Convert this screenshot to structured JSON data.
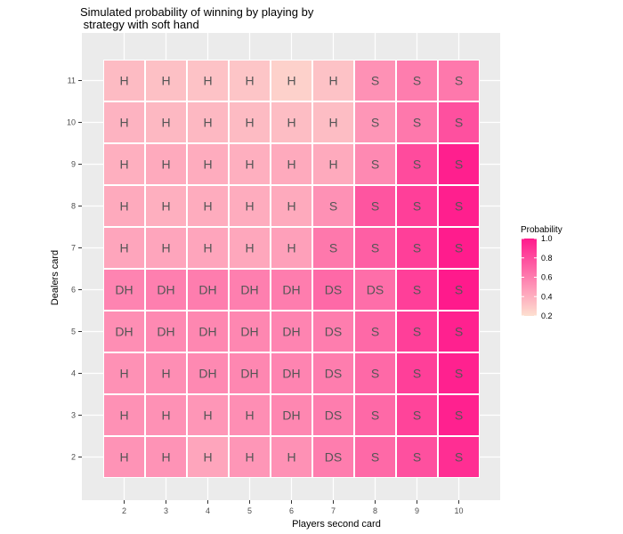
{
  "chart_data": {
    "type": "heatmap",
    "title": "Simulated probability of winning by playing by\n strategy with soft hand",
    "xlabel": "Players second card",
    "ylabel": "Dealers card",
    "x": [
      "2",
      "3",
      "4",
      "5",
      "6",
      "7",
      "8",
      "9",
      "10"
    ],
    "y": [
      "2",
      "3",
      "4",
      "5",
      "6",
      "7",
      "8",
      "9",
      "10",
      "11"
    ],
    "legend": {
      "title": "Probability",
      "ticks": [
        "0.2",
        "0.4",
        "0.6",
        "0.8",
        "1.0"
      ],
      "range": [
        0.2,
        1.0
      ],
      "low_color": "#fde0d0",
      "high_color": "#ff1a8c",
      "placement": "right"
    },
    "grid": true,
    "cells": [
      {
        "y": "11",
        "labels": [
          "H",
          "H",
          "H",
          "H",
          "H",
          "H",
          "S",
          "S",
          "S"
        ],
        "values": [
          0.35,
          0.33,
          0.32,
          0.31,
          0.26,
          0.32,
          0.52,
          0.6,
          0.62
        ]
      },
      {
        "y": "10",
        "labels": [
          "H",
          "H",
          "H",
          "H",
          "H",
          "H",
          "S",
          "S",
          "S"
        ],
        "values": [
          0.38,
          0.36,
          0.36,
          0.35,
          0.34,
          0.34,
          0.5,
          0.62,
          0.78
        ]
      },
      {
        "y": "9",
        "labels": [
          "H",
          "H",
          "H",
          "H",
          "H",
          "H",
          "S",
          "S",
          "S"
        ],
        "values": [
          0.4,
          0.42,
          0.41,
          0.4,
          0.42,
          0.42,
          0.55,
          0.8,
          0.98
        ]
      },
      {
        "y": "8",
        "labels": [
          "H",
          "H",
          "H",
          "H",
          "H",
          "S",
          "S",
          "S",
          "S"
        ],
        "values": [
          0.42,
          0.4,
          0.41,
          0.41,
          0.42,
          0.52,
          0.76,
          0.85,
          0.98
        ]
      },
      {
        "y": "7",
        "labels": [
          "H",
          "H",
          "H",
          "H",
          "H",
          "S",
          "S",
          "S",
          "S"
        ],
        "values": [
          0.44,
          0.44,
          0.44,
          0.43,
          0.46,
          0.62,
          0.72,
          0.85,
          0.99
        ]
      },
      {
        "y": "6",
        "labels": [
          "DH",
          "DH",
          "DH",
          "DH",
          "DH",
          "DS",
          "DS",
          "S",
          "S"
        ],
        "values": [
          0.57,
          0.59,
          0.6,
          0.59,
          0.6,
          0.68,
          0.66,
          0.85,
          1.0
        ]
      },
      {
        "y": "5",
        "labels": [
          "DH",
          "DH",
          "DH",
          "DH",
          "DH",
          "DS",
          "S",
          "S",
          "S"
        ],
        "values": [
          0.53,
          0.55,
          0.56,
          0.56,
          0.57,
          0.6,
          0.68,
          0.85,
          0.97
        ]
      },
      {
        "y": "4",
        "labels": [
          "H",
          "H",
          "DH",
          "DH",
          "DH",
          "DS",
          "S",
          "S",
          "S"
        ],
        "values": [
          0.52,
          0.53,
          0.55,
          0.56,
          0.57,
          0.6,
          0.68,
          0.85,
          0.97
        ]
      },
      {
        "y": "3",
        "labels": [
          "H",
          "H",
          "H",
          "H",
          "DH",
          "DS",
          "S",
          "S",
          "S"
        ],
        "values": [
          0.52,
          0.52,
          0.5,
          0.53,
          0.56,
          0.6,
          0.68,
          0.83,
          0.97
        ]
      },
      {
        "y": "2",
        "labels": [
          "H",
          "H",
          "H",
          "H",
          "H",
          "DS",
          "S",
          "S",
          "S"
        ],
        "values": [
          0.51,
          0.51,
          0.44,
          0.5,
          0.52,
          0.6,
          0.68,
          0.78,
          0.92
        ]
      }
    ]
  }
}
